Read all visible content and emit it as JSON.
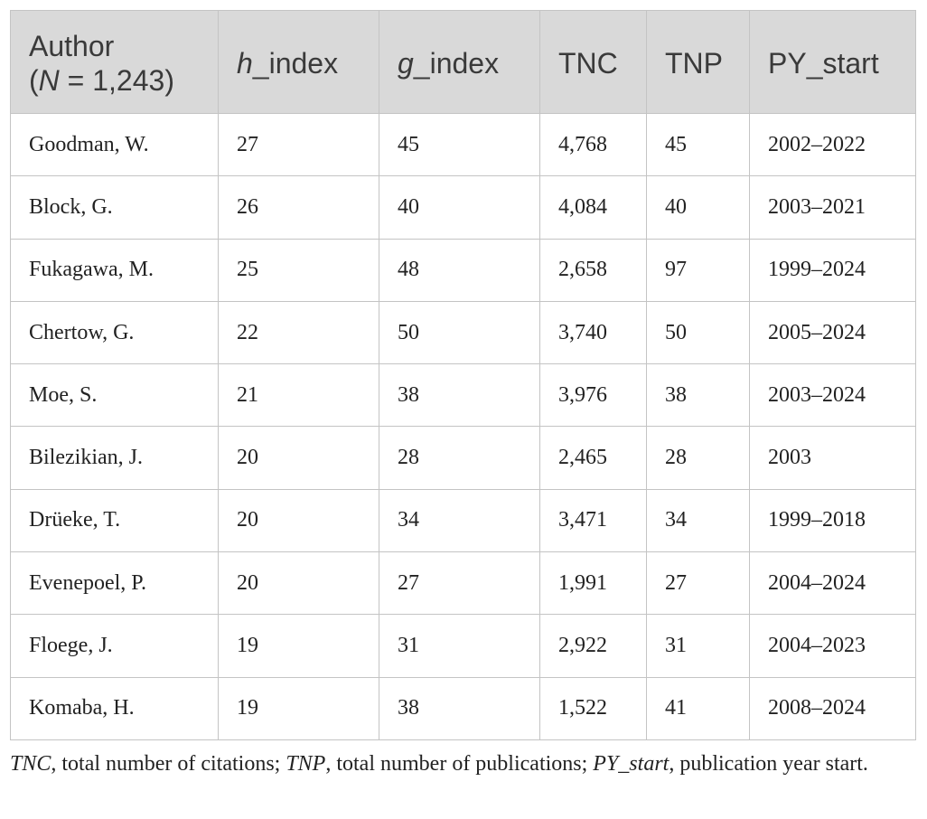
{
  "table": {
    "headers": {
      "author_line1": "Author",
      "author_n_symbol": "N",
      "author_n_value": " = 1,243)",
      "author_open_paren": "(",
      "h_italic": "h",
      "h_rest": "_index",
      "g_italic": "g",
      "g_rest": "_index",
      "tnc": "TNC",
      "tnp": "TNP",
      "py_start": "PY_start"
    },
    "rows": [
      {
        "author": "Goodman, W.",
        "h_index": "27",
        "g_index": "45",
        "tnc": "4,768",
        "tnp": "45",
        "py_start": "2002–2022"
      },
      {
        "author": "Block, G.",
        "h_index": "26",
        "g_index": "40",
        "tnc": "4,084",
        "tnp": "40",
        "py_start": "2003–2021"
      },
      {
        "author": "Fukagawa, M.",
        "h_index": "25",
        "g_index": "48",
        "tnc": "2,658",
        "tnp": "97",
        "py_start": "1999–2024"
      },
      {
        "author": "Chertow, G.",
        "h_index": "22",
        "g_index": "50",
        "tnc": "3,740",
        "tnp": "50",
        "py_start": "2005–2024"
      },
      {
        "author": "Moe, S.",
        "h_index": "21",
        "g_index": "38",
        "tnc": "3,976",
        "tnp": "38",
        "py_start": "2003–2024"
      },
      {
        "author": "Bilezikian, J.",
        "h_index": "20",
        "g_index": "28",
        "tnc": "2,465",
        "tnp": "28",
        "py_start": "2003"
      },
      {
        "author": "Drüeke, T.",
        "h_index": "20",
        "g_index": "34",
        "tnc": "3,471",
        "tnp": "34",
        "py_start": "1999–2018"
      },
      {
        "author": "Evenepoel, P.",
        "h_index": "20",
        "g_index": "27",
        "tnc": "1,991",
        "tnp": "27",
        "py_start": "2004–2024"
      },
      {
        "author": "Floege, J.",
        "h_index": "19",
        "g_index": "31",
        "tnc": "2,922",
        "tnp": "31",
        "py_start": "2004–2023"
      },
      {
        "author": "Komaba, H.",
        "h_index": "19",
        "g_index": "38",
        "tnc": "1,522",
        "tnp": "41",
        "py_start": "2008–2024"
      }
    ]
  },
  "footnote": {
    "tnc_abbr": "TNC",
    "tnc_def": ", total number of citations; ",
    "tnp_abbr": "TNP",
    "tnp_def": ", total number of publications; ",
    "py_abbr": "PY_start",
    "py_def": ", publication year start."
  },
  "colors": {
    "header_bg": "#d9d9d9",
    "border": "#c4c4c4",
    "text": "#222222"
  }
}
